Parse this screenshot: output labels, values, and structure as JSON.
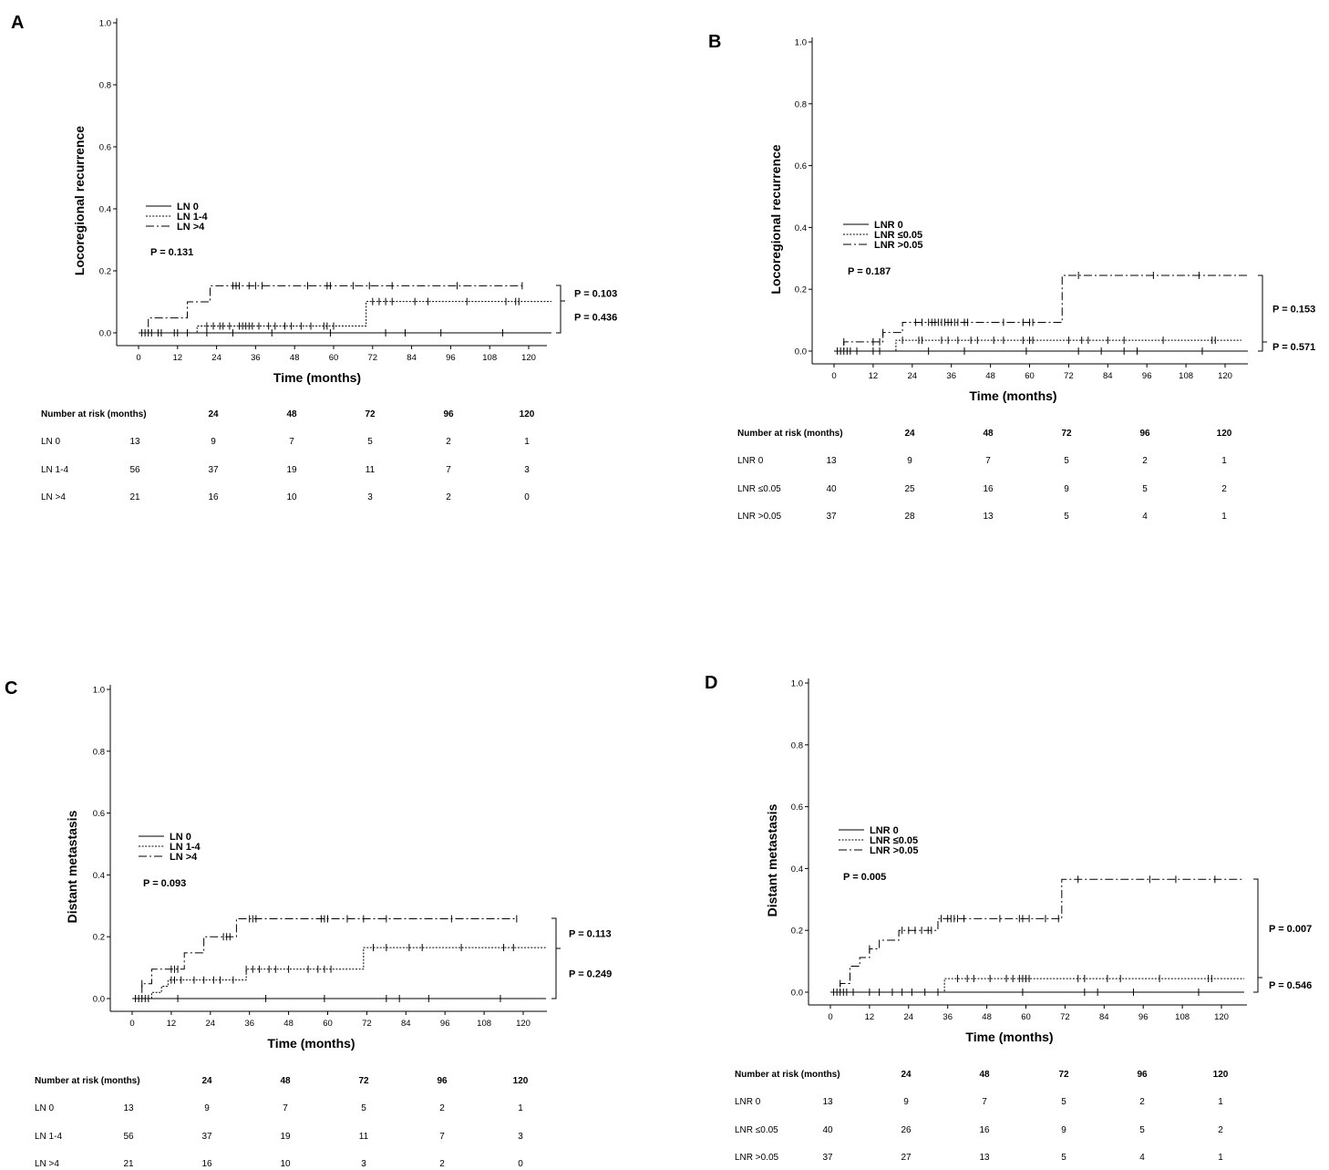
{
  "chart_data": [
    {
      "panel": "A",
      "type": "line",
      "ylabel": "Locoregional recurrence",
      "xlabel": "Time (months)",
      "xlim": [
        0,
        120
      ],
      "ylim": [
        0,
        1.0
      ],
      "x_ticks": [
        0,
        12,
        24,
        36,
        48,
        60,
        72,
        84,
        96,
        108,
        120
      ],
      "y_ticks": [
        0.0,
        0.2,
        0.4,
        0.6,
        0.8,
        1.0
      ],
      "legend": [
        "LN 0",
        "LN 1-4",
        "LN >4"
      ],
      "overall_p": "P = 0.131",
      "pair_p": [
        "P = 0.103",
        "P = 0.436"
      ],
      "series": [
        {
          "name": "LN 0",
          "style": "solid",
          "end": 127,
          "steps": [
            [
              0,
              0
            ]
          ],
          "censors": [
            1,
            2,
            3,
            4,
            6,
            7,
            11,
            12,
            15,
            15,
            21,
            29,
            41,
            59,
            76,
            82,
            93,
            112
          ]
        },
        {
          "name": "LN 1-4",
          "style": "dotted",
          "end": 127,
          "steps": [
            [
              0,
              0
            ],
            [
              18,
              0.022
            ],
            [
              70,
              0.101
            ]
          ],
          "censors": [
            21,
            23,
            25,
            26,
            28,
            31,
            32,
            33,
            34,
            35,
            37,
            40,
            42,
            45,
            47,
            50,
            53,
            57,
            58,
            60,
            72,
            74,
            76,
            78,
            85,
            89,
            101,
            113,
            116,
            117
          ]
        },
        {
          "name": "LN >4",
          "style": "dashdot",
          "end": 118,
          "steps": [
            [
              0,
              0
            ],
            [
              3,
              0.048
            ],
            [
              15,
              0.1
            ],
            [
              22,
              0.152
            ]
          ],
          "censors": [
            29,
            30,
            31,
            34,
            36,
            38,
            52,
            58,
            59,
            66,
            71,
            78,
            98,
            118
          ]
        }
      ],
      "risk_header": [
        "Number at risk (months)",
        "",
        "24",
        "48",
        "72",
        "96",
        "120"
      ],
      "risk_rows": [
        [
          "LN 0",
          "13",
          "9",
          "7",
          "5",
          "2",
          "1"
        ],
        [
          "LN 1-4",
          "56",
          "37",
          "19",
          "11",
          "7",
          "3"
        ],
        [
          "LN >4",
          "21",
          "16",
          "10",
          "3",
          "2",
          "0"
        ]
      ]
    },
    {
      "panel": "B",
      "type": "line",
      "ylabel": "Locoregional recurrence",
      "xlabel": "Time (months)",
      "xlim": [
        0,
        120
      ],
      "ylim": [
        0,
        1.0
      ],
      "x_ticks": [
        0,
        12,
        24,
        36,
        48,
        60,
        72,
        84,
        96,
        108,
        120
      ],
      "y_ticks": [
        0.0,
        0.2,
        0.4,
        0.6,
        0.8,
        1.0
      ],
      "legend": [
        "LNR 0",
        "LNR ≤0.05",
        "LNR >0.05"
      ],
      "overall_p": "P = 0.187",
      "pair_p": [
        "P = 0.153",
        "P = 0.571"
      ],
      "series": [
        {
          "name": "LNR 0",
          "style": "solid",
          "end": 127,
          "steps": [
            [
              0,
              0
            ]
          ],
          "censors": [
            1,
            2,
            3,
            4,
            5,
            7,
            12,
            14,
            29,
            40,
            59,
            75,
            82,
            89,
            93,
            113
          ]
        },
        {
          "name": "LNR ≤0.05",
          "style": "dotted",
          "end": 125,
          "steps": [
            [
              0,
              0
            ],
            [
              19,
              0.035
            ]
          ],
          "censors": [
            21,
            26,
            27,
            33,
            35,
            38,
            42,
            44,
            49,
            52,
            58,
            60,
            61,
            72,
            76,
            78,
            84,
            89,
            101,
            116,
            117
          ]
        },
        {
          "name": "LNR >0.05",
          "style": "dashdot",
          "end": 127,
          "steps": [
            [
              0,
              0
            ],
            [
              3,
              0.03
            ],
            [
              15,
              0.06
            ],
            [
              21,
              0.093
            ],
            [
              70,
              0.245
            ]
          ],
          "censors": [
            3,
            12,
            14,
            15,
            25,
            27,
            29,
            30,
            31,
            32,
            33,
            34,
            35,
            36,
            37,
            38,
            40,
            41,
            52,
            58,
            60,
            61,
            75,
            98,
            112
          ]
        }
      ],
      "risk_header": [
        "Number at risk (months)",
        "",
        "24",
        "48",
        "72",
        "96",
        "120"
      ],
      "risk_rows": [
        [
          "LNR 0",
          "13",
          "9",
          "7",
          "5",
          "2",
          "1"
        ],
        [
          "LNR ≤0.05",
          "40",
          "25",
          "16",
          "9",
          "5",
          "2"
        ],
        [
          "LNR >0.05",
          "37",
          "28",
          "13",
          "5",
          "4",
          "1"
        ]
      ]
    },
    {
      "panel": "C",
      "type": "line",
      "ylabel": "Distant metastasis",
      "xlabel": "Time (months)",
      "xlim": [
        0,
        120
      ],
      "ylim": [
        0,
        1.0
      ],
      "x_ticks": [
        0,
        12,
        24,
        36,
        48,
        60,
        72,
        84,
        96,
        108,
        120
      ],
      "y_ticks": [
        0.0,
        0.2,
        0.4,
        0.6,
        0.8,
        1.0
      ],
      "legend": [
        "LN 0",
        "LN 1-4",
        "LN >4"
      ],
      "overall_p": "P = 0.093",
      "pair_p": [
        "P = 0.113",
        "P = 0.249"
      ],
      "series": [
        {
          "name": "LN 0",
          "style": "solid",
          "end": 127,
          "steps": [
            [
              0,
              0
            ]
          ],
          "censors": [
            1,
            2,
            3,
            4,
            5,
            14,
            41,
            59,
            78,
            82,
            91,
            113
          ]
        },
        {
          "name": "LN 1-4",
          "style": "dotted",
          "end": 127,
          "steps": [
            [
              0,
              0
            ],
            [
              6,
              0.02
            ],
            [
              9,
              0.04
            ],
            [
              11,
              0.06
            ],
            [
              35,
              0.095
            ],
            [
              71,
              0.165
            ]
          ],
          "censors": [
            12,
            13,
            15,
            19,
            22,
            25,
            27,
            31,
            35,
            37,
            39,
            42,
            44,
            48,
            54,
            57,
            59,
            61,
            74,
            78,
            85,
            89,
            101,
            114,
            117
          ]
        },
        {
          "name": "LN >4",
          "style": "dashdot",
          "end": 118,
          "steps": [
            [
              0,
              0
            ],
            [
              3,
              0.048
            ],
            [
              6,
              0.095
            ],
            [
              16,
              0.148
            ],
            [
              22,
              0.2
            ],
            [
              32,
              0.258
            ]
          ],
          "censors": [
            3,
            12,
            13,
            14,
            28,
            29,
            30,
            36,
            37,
            38,
            58,
            59,
            60,
            66,
            71,
            78,
            98,
            118
          ]
        }
      ],
      "risk_header": [
        "Number at risk (months)",
        "",
        "24",
        "48",
        "72",
        "96",
        "120"
      ],
      "risk_rows": [
        [
          "LN 0",
          "13",
          "9",
          "7",
          "5",
          "2",
          "1"
        ],
        [
          "LN 1-4",
          "56",
          "37",
          "19",
          "11",
          "7",
          "3"
        ],
        [
          "LN >4",
          "21",
          "16",
          "10",
          "3",
          "2",
          "0"
        ]
      ]
    },
    {
      "panel": "D",
      "type": "line",
      "ylabel": "Distant metastasis",
      "xlabel": "Time (months)",
      "xlim": [
        0,
        120
      ],
      "ylim": [
        0,
        1.0
      ],
      "x_ticks": [
        0,
        12,
        24,
        36,
        48,
        60,
        72,
        84,
        96,
        108,
        120
      ],
      "y_ticks": [
        0.0,
        0.2,
        0.4,
        0.6,
        0.8,
        1.0
      ],
      "legend": [
        "LNR 0",
        "LNR ≤0.05",
        "LNR >0.05"
      ],
      "overall_p": "P = 0.005",
      "pair_p": [
        "P = 0.007",
        "P = 0.546"
      ],
      "series": [
        {
          "name": "LNR 0",
          "style": "solid",
          "end": 127,
          "steps": [
            [
              0,
              0
            ]
          ],
          "censors": [
            1,
            2,
            3,
            4,
            5,
            7,
            12,
            15,
            19,
            22,
            25,
            29,
            33,
            59,
            78,
            82,
            93,
            113
          ]
        },
        {
          "name": "LNR ≤0.05",
          "style": "dotted",
          "end": 127,
          "steps": [
            [
              0,
              0
            ],
            [
              35,
              0.044
            ]
          ],
          "censors": [
            39,
            42,
            44,
            49,
            54,
            56,
            58,
            59,
            60,
            61,
            76,
            78,
            85,
            89,
            101,
            116,
            117
          ]
        },
        {
          "name": "LNR >0.05",
          "style": "dashdot",
          "end": 127,
          "steps": [
            [
              0,
              0
            ],
            [
              3,
              0.028
            ],
            [
              6,
              0.084
            ],
            [
              9,
              0.112
            ],
            [
              12,
              0.14
            ],
            [
              15,
              0.168
            ],
            [
              21,
              0.2
            ],
            [
              33,
              0.238
            ],
            [
              71,
              0.365
            ]
          ],
          "censors": [
            3,
            12,
            22,
            24,
            26,
            28,
            30,
            31,
            34,
            36,
            37,
            38,
            39,
            41,
            52,
            58,
            59,
            61,
            66,
            70,
            76,
            98,
            106,
            118
          ]
        }
      ],
      "risk_header": [
        "Number at risk (months)",
        "",
        "24",
        "48",
        "72",
        "96",
        "120"
      ],
      "risk_rows": [
        [
          "LNR 0",
          "13",
          "9",
          "7",
          "5",
          "2",
          "1"
        ],
        [
          "LNR ≤0.05",
          "40",
          "26",
          "16",
          "9",
          "5",
          "2"
        ],
        [
          "LNR >0.05",
          "37",
          "27",
          "13",
          "5",
          "4",
          "1"
        ]
      ]
    }
  ]
}
